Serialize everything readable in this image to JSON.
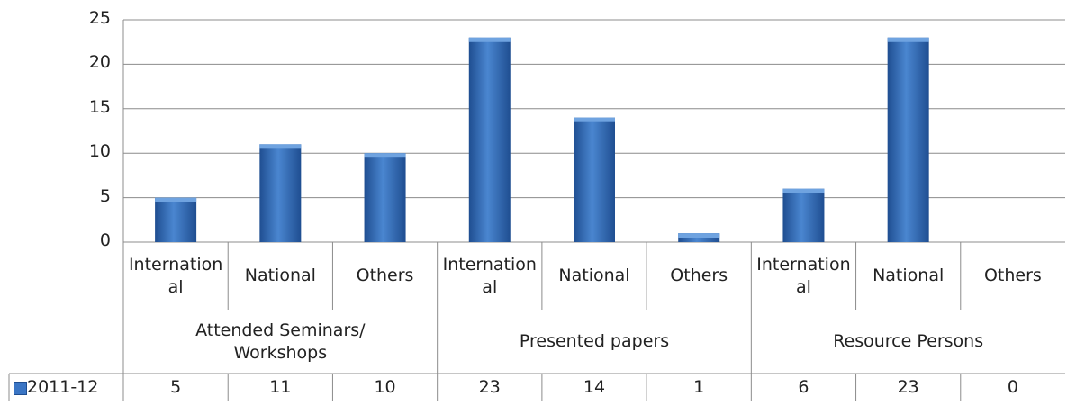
{
  "chart_data": {
    "type": "bar",
    "groups": [
      {
        "label": "Attended Seminars/ Workshops",
        "categories": [
          "International",
          "National",
          "Others"
        ]
      },
      {
        "label": "Presented papers",
        "categories": [
          "International",
          "National",
          "Others"
        ]
      },
      {
        "label": "Resource Persons",
        "categories": [
          "International",
          "National",
          "Others"
        ]
      }
    ],
    "categories": [
      "International",
      "National",
      "Others",
      "International",
      "National",
      "Others",
      "International",
      "National",
      "Others"
    ],
    "series": [
      {
        "name": "2011-12",
        "values": [
          5,
          11,
          10,
          23,
          14,
          1,
          6,
          23,
          0
        ]
      }
    ],
    "ylim": [
      0,
      25
    ],
    "yticks": [
      0,
      5,
      10,
      15,
      20,
      25
    ],
    "grid": true,
    "legend": "data-table",
    "colors": {
      "bar": "#3a75c4",
      "bar_dark": "#1f4e91",
      "bar_light": "#6fa3e0",
      "grid": "#8c8c8c"
    }
  }
}
